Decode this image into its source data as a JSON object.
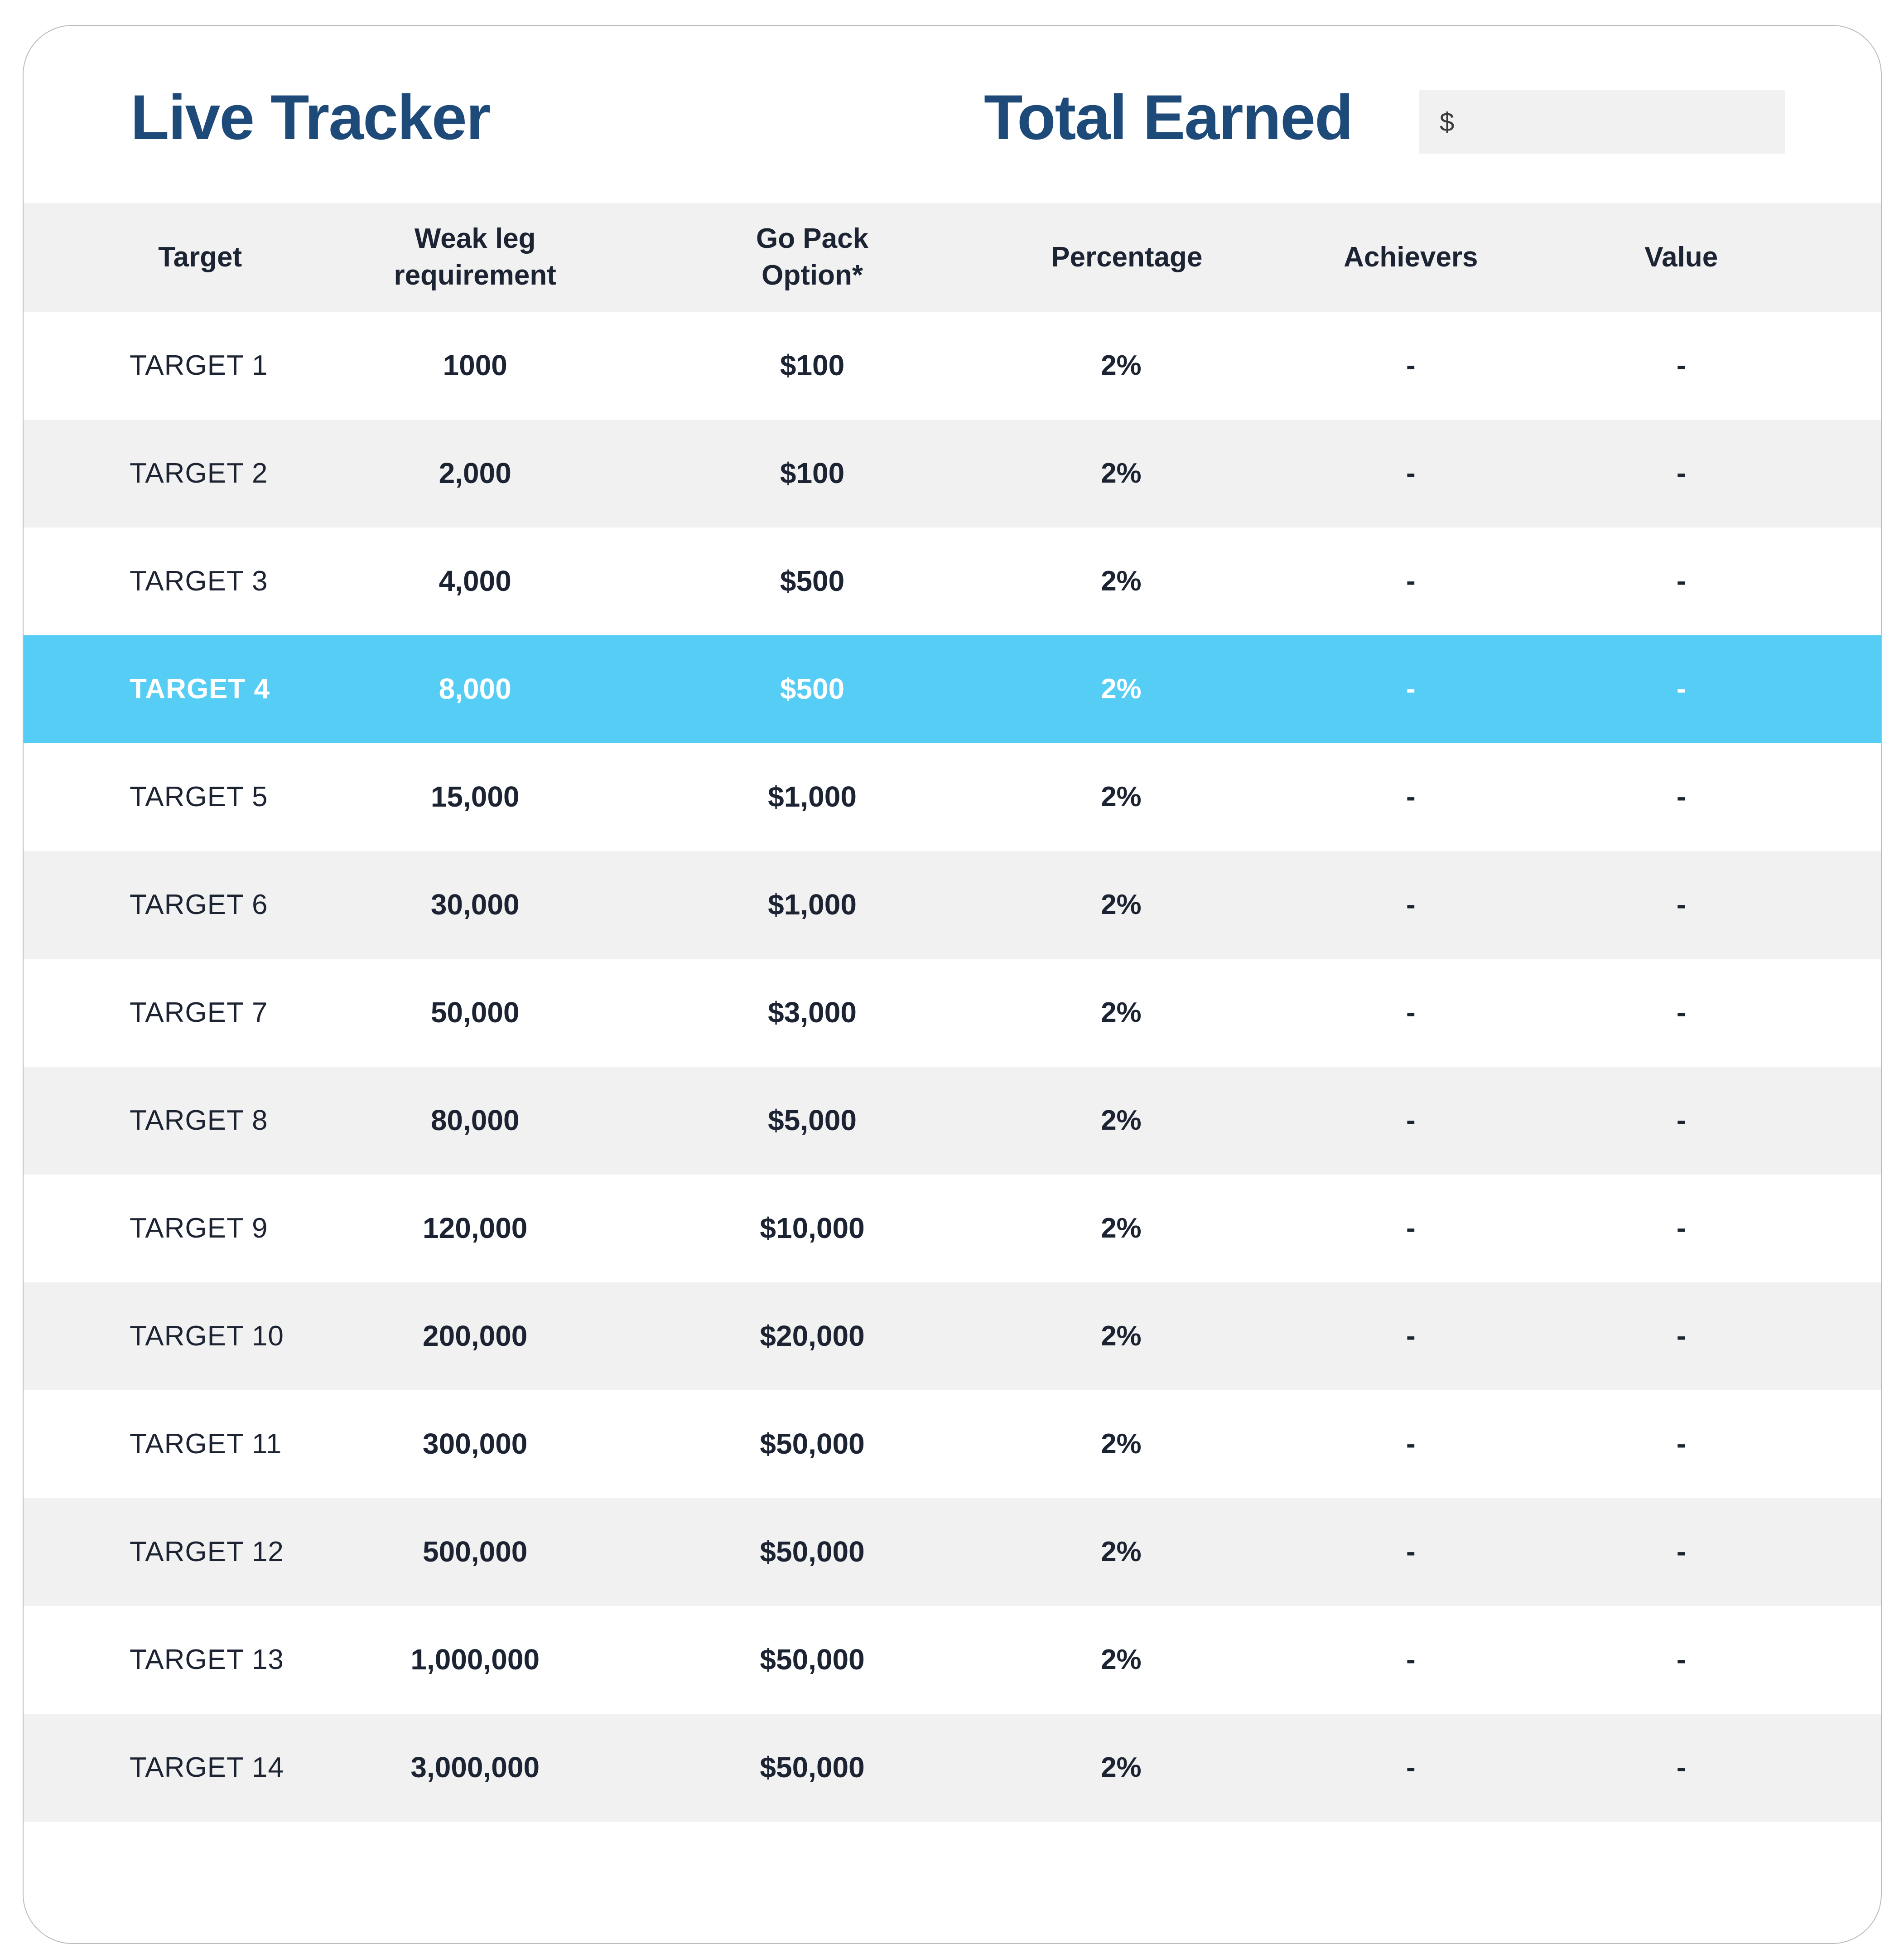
{
  "header": {
    "title": "Live Tracker",
    "total_earned_label": "Total Earned",
    "currency_symbol": "$",
    "total_earned_value": ""
  },
  "table": {
    "columns": [
      "Target",
      "Weak leg requirement",
      "Go Pack Option*",
      "Percentage",
      "Achievers",
      "Value"
    ],
    "rows": [
      {
        "target": "TARGET 1",
        "weak_leg": "1000",
        "go_pack": "$100",
        "percentage": "2%",
        "achievers": "-",
        "value": "-",
        "highlighted": false
      },
      {
        "target": "TARGET 2",
        "weak_leg": "2,000",
        "go_pack": "$100",
        "percentage": "2%",
        "achievers": "-",
        "value": "-",
        "highlighted": false
      },
      {
        "target": "TARGET 3",
        "weak_leg": "4,000",
        "go_pack": "$500",
        "percentage": "2%",
        "achievers": "-",
        "value": "-",
        "highlighted": false
      },
      {
        "target": "TARGET 4",
        "weak_leg": "8,000",
        "go_pack": "$500",
        "percentage": "2%",
        "achievers": "-",
        "value": "-",
        "highlighted": true
      },
      {
        "target": "TARGET 5",
        "weak_leg": "15,000",
        "go_pack": "$1,000",
        "percentage": "2%",
        "achievers": "-",
        "value": "-",
        "highlighted": false
      },
      {
        "target": "TARGET 6",
        "weak_leg": "30,000",
        "go_pack": "$1,000",
        "percentage": "2%",
        "achievers": "-",
        "value": "-",
        "highlighted": false
      },
      {
        "target": "TARGET 7",
        "weak_leg": "50,000",
        "go_pack": "$3,000",
        "percentage": "2%",
        "achievers": "-",
        "value": "-",
        "highlighted": false
      },
      {
        "target": "TARGET 8",
        "weak_leg": "80,000",
        "go_pack": "$5,000",
        "percentage": "2%",
        "achievers": "-",
        "value": "-",
        "highlighted": false
      },
      {
        "target": "TARGET 9",
        "weak_leg": "120,000",
        "go_pack": "$10,000",
        "percentage": "2%",
        "achievers": "-",
        "value": "-",
        "highlighted": false
      },
      {
        "target": "TARGET 10",
        "weak_leg": "200,000",
        "go_pack": "$20,000",
        "percentage": "2%",
        "achievers": "-",
        "value": "-",
        "highlighted": false
      },
      {
        "target": "TARGET 11",
        "weak_leg": "300,000",
        "go_pack": "$50,000",
        "percentage": "2%",
        "achievers": "-",
        "value": "-",
        "highlighted": false
      },
      {
        "target": "TARGET 12",
        "weak_leg": "500,000",
        "go_pack": "$50,000",
        "percentage": "2%",
        "achievers": "-",
        "value": "-",
        "highlighted": false
      },
      {
        "target": "TARGET 13",
        "weak_leg": "1,000,000",
        "go_pack": "$50,000",
        "percentage": "2%",
        "achievers": "-",
        "value": "-",
        "highlighted": false
      },
      {
        "target": "TARGET 14",
        "weak_leg": "3,000,000",
        "go_pack": "$50,000",
        "percentage": "2%",
        "achievers": "-",
        "value": "-",
        "highlighted": false
      }
    ]
  },
  "colors": {
    "highlight_row": "#55cdf5",
    "stripe_row": "#f1f1f1",
    "title_text": "#1d4a78",
    "body_text": "#1c2433",
    "input_background": "#f1f1f1",
    "card_border": "#bcbcbc"
  }
}
